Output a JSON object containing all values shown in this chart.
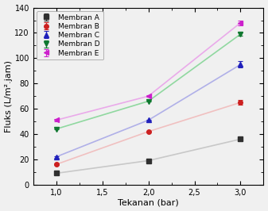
{
  "x": [
    1.0,
    2.0,
    3.0
  ],
  "series": [
    {
      "label": "Membran A",
      "y": [
        9,
        19,
        36
      ],
      "yerr": [
        0.5,
        0.5,
        1.2
      ],
      "color": "#303030",
      "marker": "s",
      "line_color": "#c8c8c8",
      "markersize": 4
    },
    {
      "label": "Membran B",
      "y": [
        16,
        42,
        65
      ],
      "yerr": [
        0.5,
        0.5,
        2.0
      ],
      "color": "#cc2020",
      "marker": "o",
      "line_color": "#f0c0c0",
      "markersize": 4
    },
    {
      "label": "Membran C",
      "y": [
        22,
        51,
        95
      ],
      "yerr": [
        0.5,
        0.5,
        2.5
      ],
      "color": "#2020bb",
      "marker": "^",
      "line_color": "#b0b0e8",
      "markersize": 5
    },
    {
      "label": "Membran D",
      "y": [
        44,
        66,
        119
      ],
      "yerr": [
        0.5,
        0.5,
        1.0
      ],
      "color": "#107830",
      "marker": "v",
      "line_color": "#90d8a0",
      "markersize": 5
    },
    {
      "label": "Membran E",
      "y": [
        51,
        70,
        128
      ],
      "yerr": [
        1.0,
        0.5,
        2.0
      ],
      "color": "#cc20cc",
      "marker": "<",
      "line_color": "#eaaaea",
      "markersize": 5
    }
  ],
  "xlabel": "Tekanan (bar)",
  "ylabel": "Fluks (L/m².jam)",
  "xlim": [
    0.75,
    3.25
  ],
  "ylim": [
    0,
    140
  ],
  "yticks": [
    0,
    20,
    40,
    60,
    80,
    100,
    120,
    140
  ],
  "xticks": [
    1.0,
    1.5,
    2.0,
    2.5,
    3.0
  ],
  "xtick_labels": [
    "1,0",
    "1,5",
    "2,0",
    "2,5",
    "3,0"
  ],
  "bg_color": "#f0f0f0"
}
